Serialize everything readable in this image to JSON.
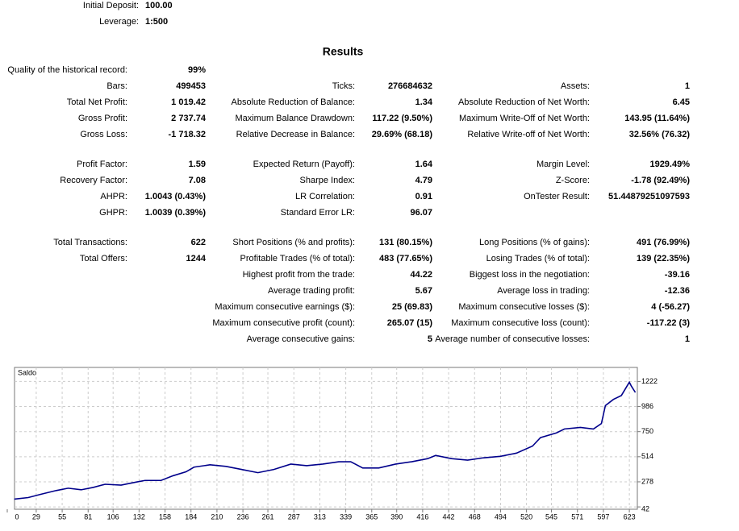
{
  "header": {
    "rows": [
      {
        "label": "Initial Deposit:",
        "value": "100.00"
      },
      {
        "label": "Leverage:",
        "value": "1:500"
      }
    ]
  },
  "results": {
    "title": "Results",
    "blocks": [
      {
        "rows": [
          [
            {
              "label": "Quality of the historical record:",
              "value": "99%"
            },
            null,
            null
          ],
          [
            {
              "label": "Bars:",
              "value": "499453"
            },
            {
              "label": "Ticks:",
              "value": "276684632"
            },
            {
              "label": "Assets:",
              "value": "1"
            }
          ],
          [
            {
              "label": "Total Net Profit:",
              "value": "1 019.42"
            },
            {
              "label": "Absolute Reduction of Balance:",
              "value": "1.34"
            },
            {
              "label": "Absolute Reduction of Net Worth:",
              "value": "6.45"
            }
          ],
          [
            {
              "label": "Gross Profit:",
              "value": "2 737.74"
            },
            {
              "label": "Maximum Balance Drawdown:",
              "value": "117.22 (9.50%)"
            },
            {
              "label": "Maximum Write-Off of Net Worth:",
              "value": "143.95 (11.64%)"
            }
          ],
          [
            {
              "label": "Gross Loss:",
              "value": "-1 718.32"
            },
            {
              "label": "Relative Decrease in Balance:",
              "value": "29.69% (68.18)"
            },
            {
              "label": "Relative Write-off of Net Worth:",
              "value": "32.56% (76.32)"
            }
          ]
        ]
      },
      {
        "rows": [
          [
            {
              "label": "Profit Factor:",
              "value": "1.59"
            },
            {
              "label": "Expected Return (Payoff):",
              "value": "1.64"
            },
            {
              "label": "Margin Level:",
              "value": "1929.49%"
            }
          ],
          [
            {
              "label": "Recovery Factor:",
              "value": "7.08"
            },
            {
              "label": "Sharpe Index:",
              "value": "4.79"
            },
            {
              "label": "Z-Score:",
              "value": "-1.78 (92.49%)"
            }
          ],
          [
            {
              "label": "AHPR:",
              "value": "1.0043 (0.43%)"
            },
            {
              "label": "LR Correlation:",
              "value": "0.91"
            },
            {
              "label": "OnTester Result:",
              "value": "51.44879251097593"
            }
          ],
          [
            {
              "label": "GHPR:",
              "value": "1.0039 (0.39%)"
            },
            {
              "label": "Standard Error LR:",
              "value": "96.07"
            },
            null
          ]
        ]
      },
      {
        "rows": [
          [
            {
              "label": "Total Transactions:",
              "value": "622"
            },
            {
              "label": "Short Positions (% and profits):",
              "value": "131 (80.15%)"
            },
            {
              "label": "Long Positions (% of gains):",
              "value": "491 (76.99%)"
            }
          ],
          [
            {
              "label": "Total Offers:",
              "value": "1244"
            },
            {
              "label": "Profitable Trades (% of total):",
              "value": "483 (77.65%)"
            },
            {
              "label": "Losing Trades (% of total):",
              "value": "139 (22.35%)"
            }
          ],
          [
            null,
            {
              "label": "Highest profit from the trade:",
              "value": "44.22"
            },
            {
              "label": "Biggest loss in the negotiation:",
              "value": "-39.16"
            }
          ],
          [
            null,
            {
              "label": "Average trading profit:",
              "value": "5.67"
            },
            {
              "label": "Average loss in trading:",
              "value": "-12.36"
            }
          ],
          [
            null,
            {
              "label": "Maximum consecutive earnings ($):",
              "value": "25 (69.83)"
            },
            {
              "label": "Maximum consecutive losses ($):",
              "value": "4 (-56.27)"
            }
          ],
          [
            null,
            {
              "label": "Maximum consecutive profit (count):",
              "value": "265.07 (15)"
            },
            {
              "label": "Maximum consecutive loss (count):",
              "value": "-117.22 (3)"
            }
          ],
          [
            null,
            {
              "label": "Average consecutive gains:",
              "value": "5"
            },
            {
              "label": "Average number of consecutive losses:",
              "value": "1"
            }
          ]
        ]
      }
    ]
  },
  "chart_data": {
    "type": "line",
    "title": "Saldo",
    "grid": true,
    "xlim": [
      0,
      631
    ],
    "xticks": [
      0,
      29,
      55,
      81,
      106,
      132,
      158,
      184,
      210,
      236,
      261,
      287,
      313,
      339,
      365,
      390,
      416,
      442,
      468,
      494,
      520,
      545,
      571,
      597,
      623
    ],
    "ylim": [
      20,
      1354
    ],
    "yticks": [
      42,
      278,
      514,
      750,
      986,
      1222
    ],
    "x": [
      7,
      21,
      33,
      49,
      61,
      74,
      86,
      98,
      114,
      130,
      138,
      154,
      166,
      179,
      187,
      203,
      219,
      235,
      251,
      267,
      284,
      300,
      316,
      332,
      344,
      356,
      372,
      389,
      405,
      421,
      429,
      445,
      461,
      477,
      494,
      510,
      526,
      534,
      550,
      558,
      574,
      587,
      595,
      599,
      607,
      615,
      623,
      625,
      629
    ],
    "series": [
      {
        "color": "#00008b",
        "values": [
          115,
          130,
          159,
          196,
          218,
          203,
          225,
          255,
          247,
          277,
          291,
          291,
          335,
          372,
          416,
          438,
          423,
          394,
          364,
          394,
          445,
          430,
          445,
          467,
          467,
          408,
          408,
          445,
          467,
          496,
          526,
          496,
          482,
          504,
          518,
          548,
          614,
          694,
          738,
          775,
          790,
          775,
          826,
          995,
          1053,
          1090,
          1215,
          1178,
          1119
        ]
      }
    ]
  }
}
